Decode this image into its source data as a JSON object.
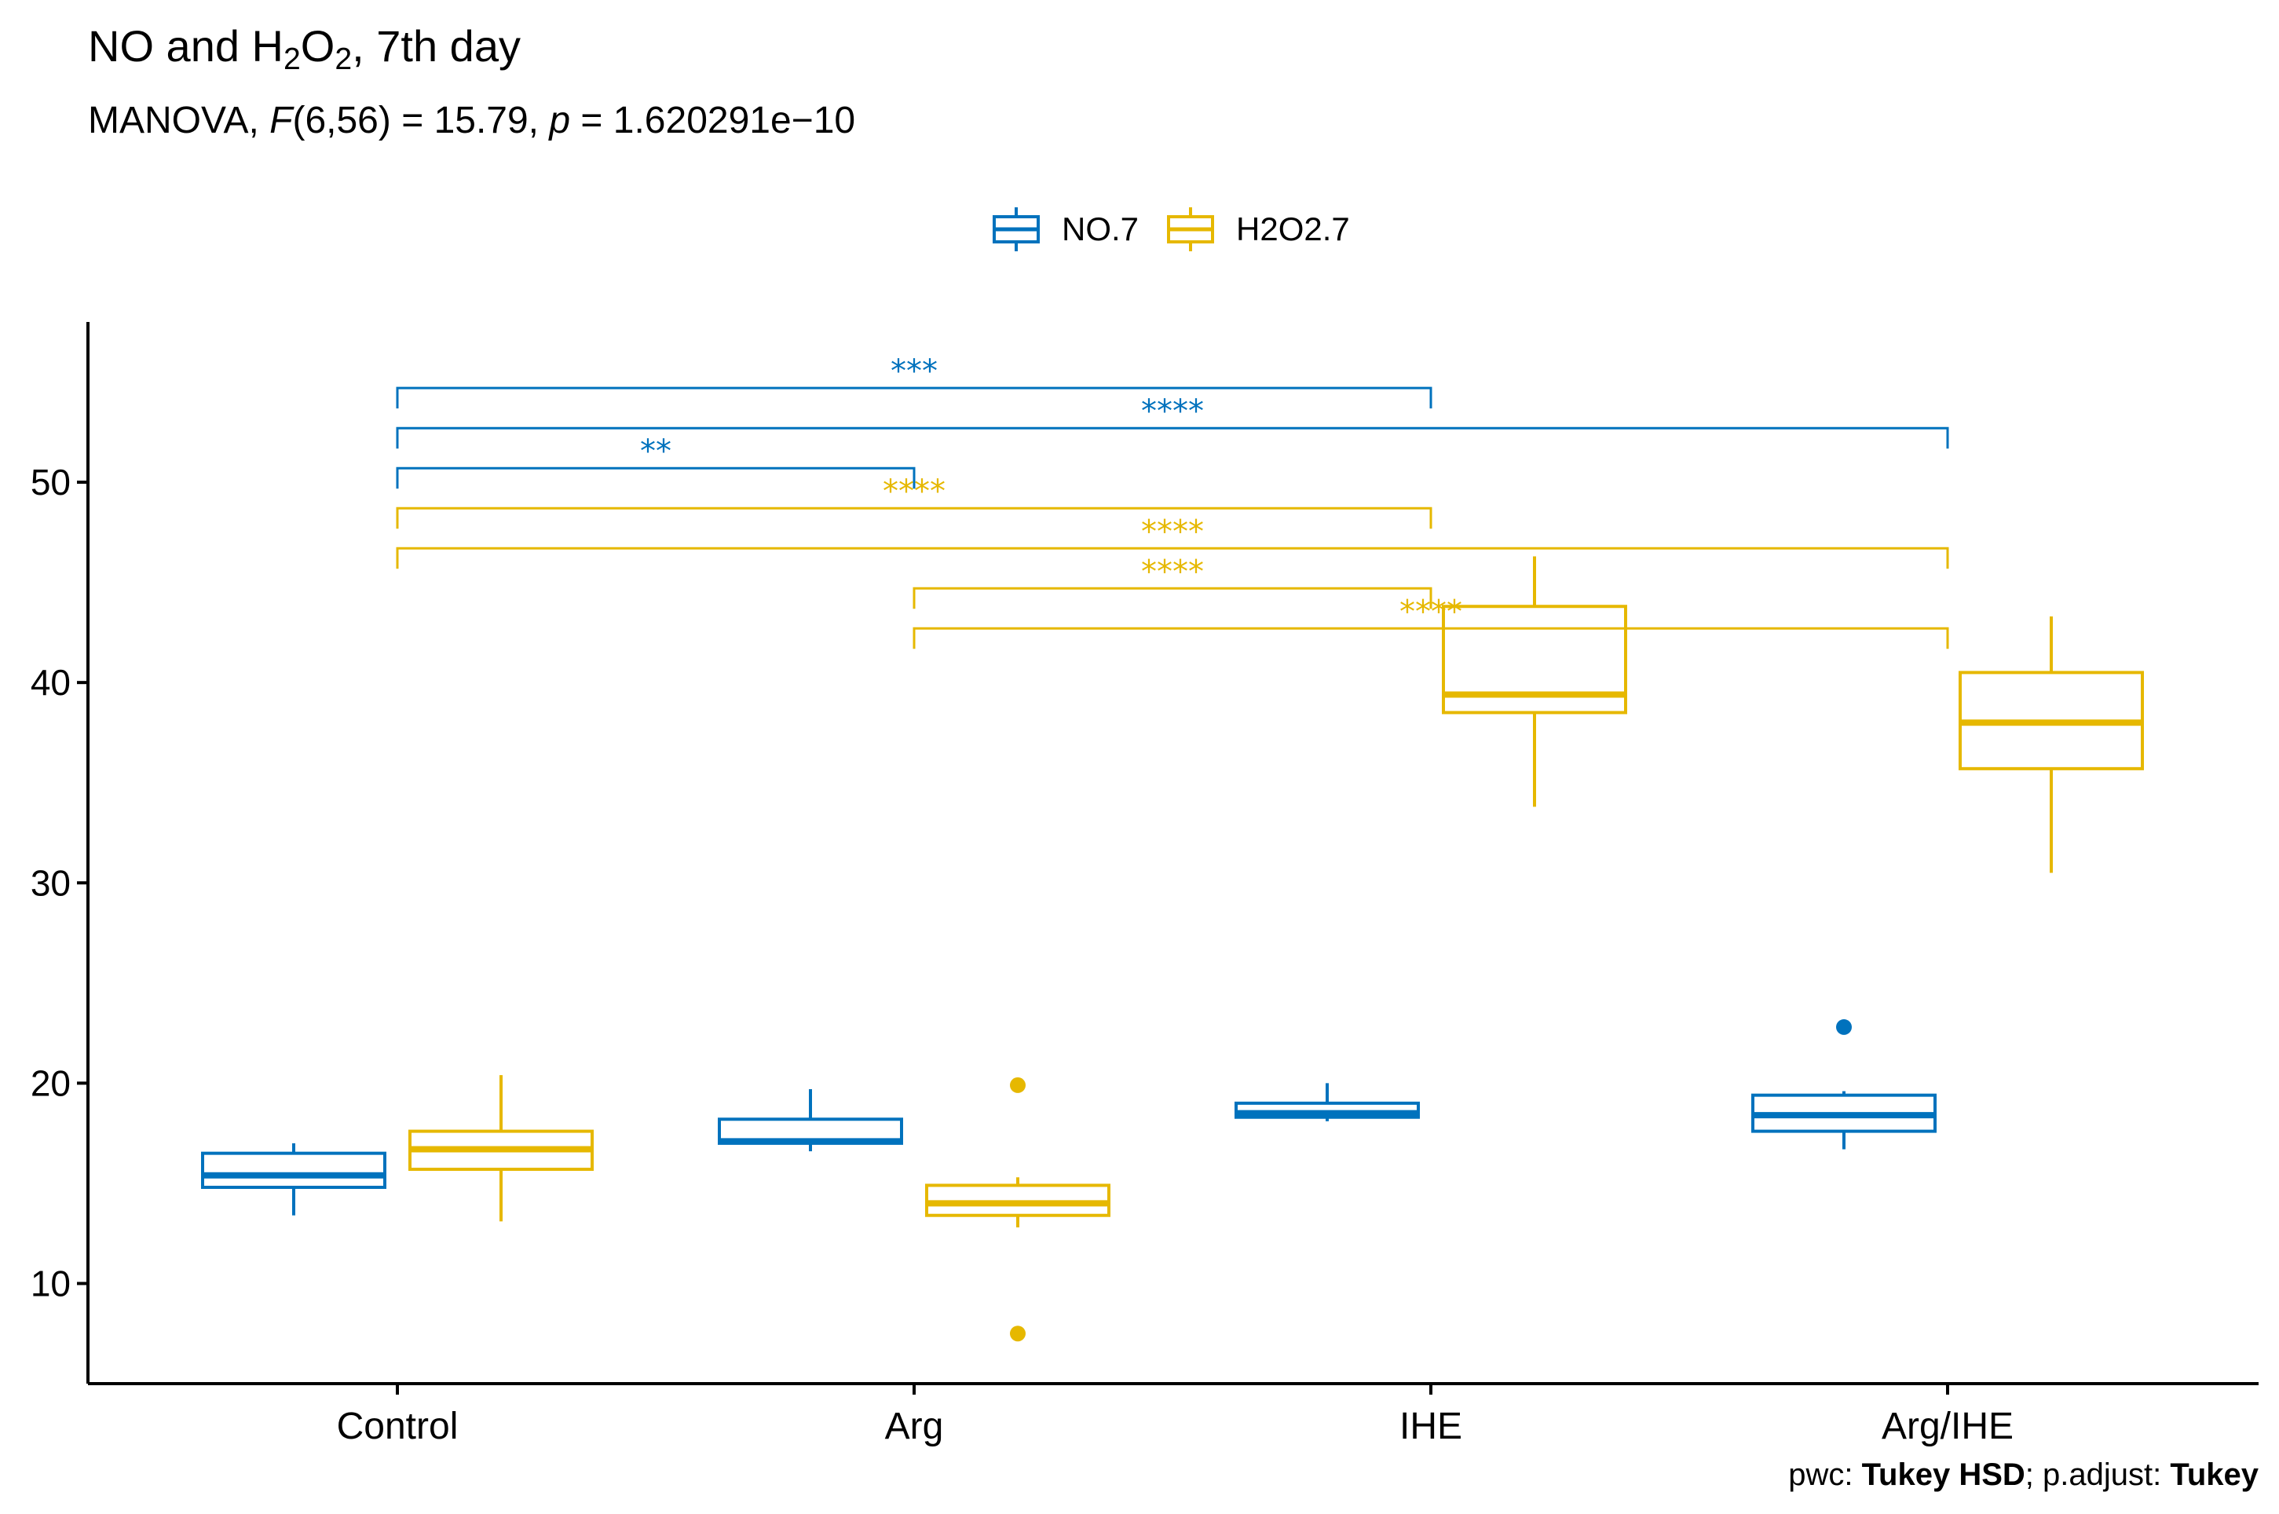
{
  "colors": {
    "no7": "#0072BD",
    "h2o27": "#E6B800",
    "axis": "#000000"
  },
  "chart_data": {
    "type": "boxplot",
    "title": {
      "part1": "NO and H",
      "sub1": "2",
      "part2": "O",
      "sub2": "2",
      "part3": ", 7th day"
    },
    "subtitle": {
      "prefix": "MANOVA, ",
      "stat": "F",
      "stat_df": "(6,56) = 15.79, ",
      "p_label": "p",
      "p_value": " = 1.620291e−10"
    },
    "caption": {
      "pwc_label": "pwc: ",
      "pwc_value": "Tukey HSD",
      "sep": "; p.adjust: ",
      "adjust_value": "Tukey"
    },
    "legend": [
      "NO.7",
      "H2O2.7"
    ],
    "categories": [
      "Control",
      "Arg",
      "IHE",
      "Arg/IHE"
    ],
    "y_ticks": [
      10,
      20,
      30,
      40,
      50
    ],
    "ylim": [
      5,
      58
    ],
    "xlabel": "",
    "ylabel": "",
    "series": [
      {
        "name": "NO.7",
        "boxes": [
          {
            "category": "Control",
            "min": 13.4,
            "q1": 14.8,
            "median": 15.4,
            "q3": 16.5,
            "max": 17.0,
            "outliers": []
          },
          {
            "category": "Arg",
            "min": 16.6,
            "q1": 17.0,
            "median": 17.1,
            "q3": 18.2,
            "max": 19.7,
            "outliers": []
          },
          {
            "category": "IHE",
            "min": 18.1,
            "q1": 18.3,
            "median": 18.5,
            "q3": 19.0,
            "max": 20.0,
            "outliers": []
          },
          {
            "category": "Arg/IHE",
            "min": 16.7,
            "q1": 17.6,
            "median": 18.4,
            "q3": 19.4,
            "max": 19.6,
            "outliers": [
              22.8
            ]
          }
        ]
      },
      {
        "name": "H2O2.7",
        "boxes": [
          {
            "category": "Control",
            "min": 13.1,
            "q1": 15.7,
            "median": 16.7,
            "q3": 17.6,
            "max": 20.4,
            "outliers": []
          },
          {
            "category": "Arg",
            "min": 12.8,
            "q1": 13.4,
            "median": 14.0,
            "q3": 14.9,
            "max": 15.3,
            "outliers": [
              19.9,
              7.5
            ]
          },
          {
            "category": "IHE",
            "min": 33.8,
            "q1": 38.5,
            "median": 39.4,
            "q3": 43.8,
            "max": 46.3,
            "outliers": []
          },
          {
            "category": "Arg/IHE",
            "min": 30.5,
            "q1": 35.7,
            "median": 38.0,
            "q3": 40.5,
            "max": 43.3,
            "outliers": []
          }
        ]
      }
    ],
    "comparisons": [
      {
        "series": "NO.7",
        "from": "Control",
        "to": "IHE",
        "y": 54.7,
        "label": "***"
      },
      {
        "series": "NO.7",
        "from": "Control",
        "to": "Arg/IHE",
        "y": 52.7,
        "label": "****"
      },
      {
        "series": "NO.7",
        "from": "Control",
        "to": "Arg",
        "y": 50.7,
        "label": "**"
      },
      {
        "series": "H2O2.7",
        "from": "Control",
        "to": "IHE",
        "y": 48.7,
        "label": "****"
      },
      {
        "series": "H2O2.7",
        "from": "Control",
        "to": "Arg/IHE",
        "y": 46.7,
        "label": "****"
      },
      {
        "series": "H2O2.7",
        "from": "Arg",
        "to": "IHE",
        "y": 44.7,
        "label": "****"
      },
      {
        "series": "H2O2.7",
        "from": "Arg",
        "to": "Arg/IHE",
        "y": 42.7,
        "label": "****"
      }
    ]
  }
}
